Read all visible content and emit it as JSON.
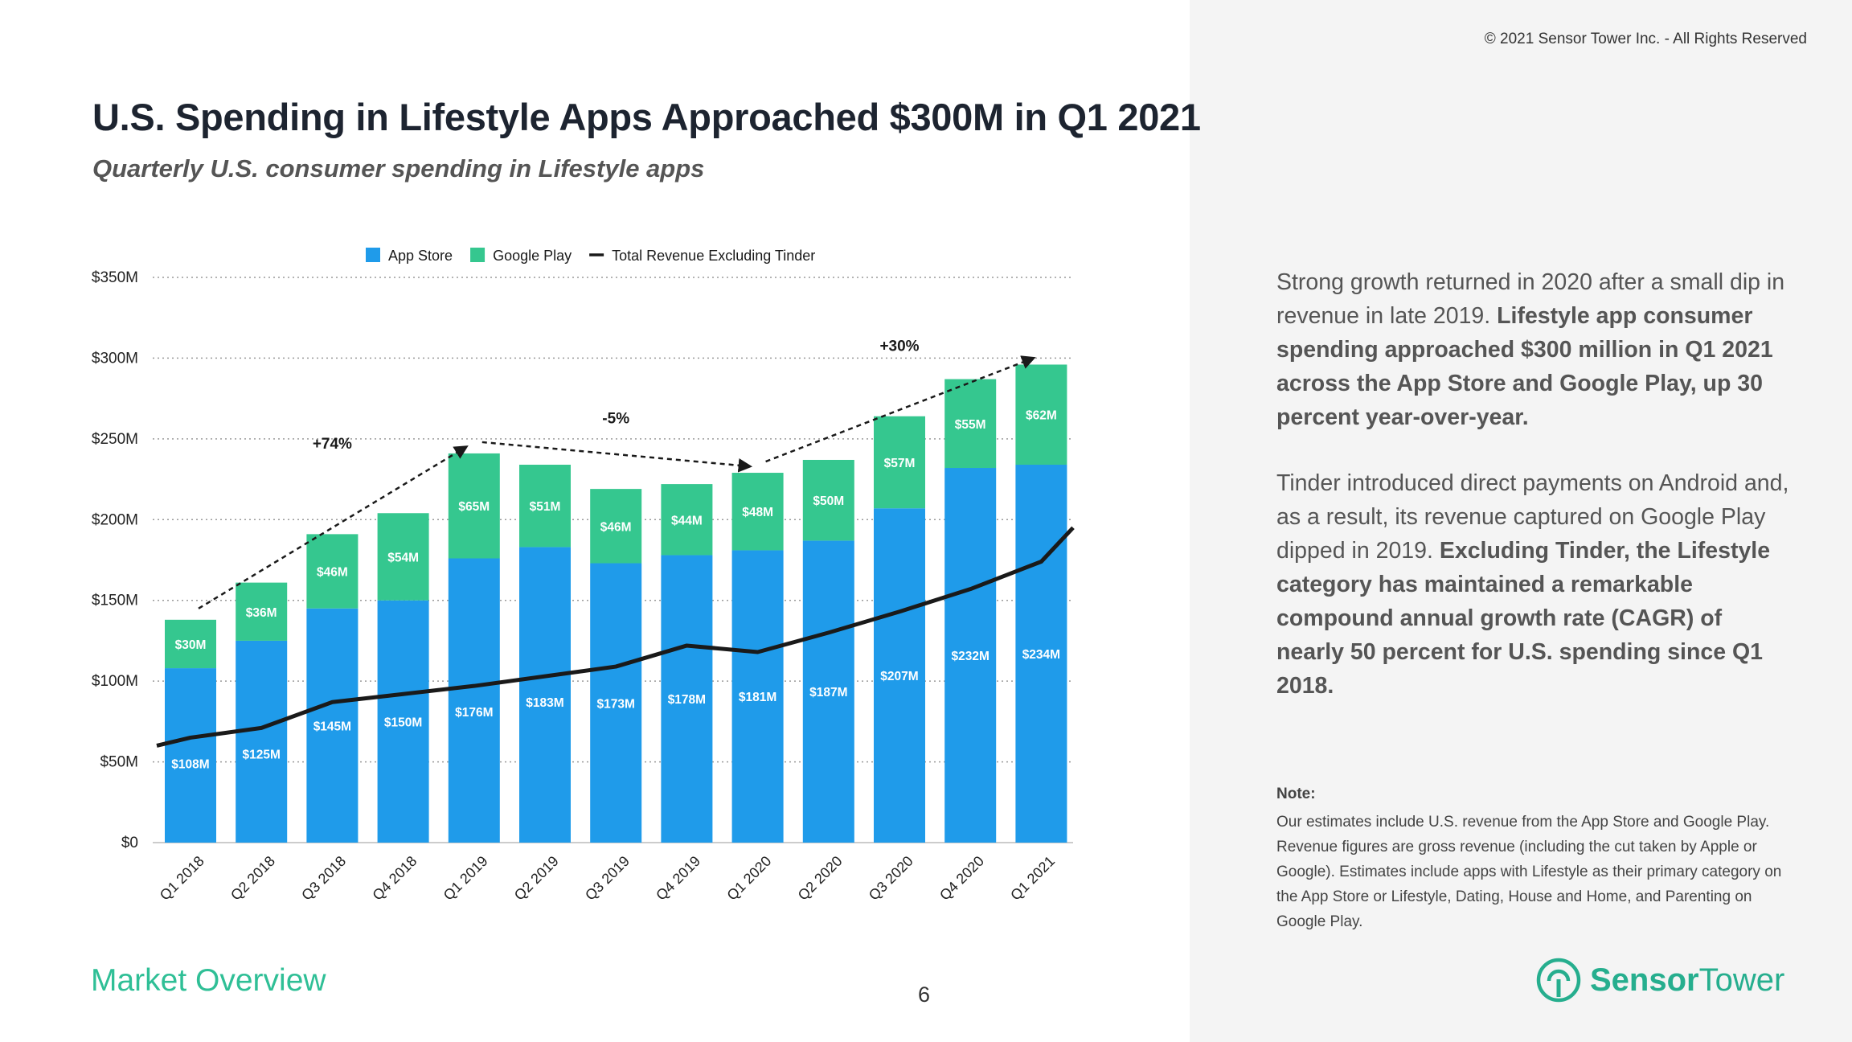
{
  "header": {
    "copyright": "© 2021 Sensor Tower Inc. - All Rights Reserved",
    "title": "U.S. Spending in Lifestyle Apps Approached $300M in Q1 2021",
    "subtitle": "Quarterly U.S. consumer spending in Lifestyle apps"
  },
  "chart_data": {
    "type": "bar",
    "stacked": true,
    "categories": [
      "Q1 2018",
      "Q2 2018",
      "Q3 2018",
      "Q4 2018",
      "Q1 2019",
      "Q2 2019",
      "Q3 2019",
      "Q4 2019",
      "Q1 2020",
      "Q2 2020",
      "Q3 2020",
      "Q4 2020",
      "Q1 2021"
    ],
    "series": [
      {
        "name": "App Store",
        "color": "#1f9bea",
        "values": [
          108,
          125,
          145,
          150,
          176,
          183,
          173,
          178,
          181,
          187,
          207,
          232,
          234
        ],
        "labels": [
          "$108M",
          "$125M",
          "$145M",
          "$150M",
          "$176M",
          "$183M",
          "$173M",
          "$178M",
          "$181M",
          "$187M",
          "$207M",
          "$232M",
          "$234M"
        ]
      },
      {
        "name": "Google Play",
        "color": "#35c78f",
        "values": [
          30,
          36,
          46,
          54,
          65,
          51,
          46,
          44,
          48,
          50,
          57,
          55,
          62
        ],
        "labels": [
          "$30M",
          "$36M",
          "$46M",
          "$54M",
          "$65M",
          "$51M",
          "$46M",
          "$44M",
          "$48M",
          "$50M",
          "$57M",
          "$55M",
          "$62M"
        ]
      }
    ],
    "line_series": {
      "name": "Total Revenue Excluding Tinder",
      "color": "#1a1a1a",
      "start_value": 60,
      "values": [
        65,
        71,
        87,
        92,
        97,
        103,
        109,
        122,
        118,
        130,
        143,
        157,
        174
      ],
      "end_value": 195
    },
    "y_ticks": [
      {
        "value": 0,
        "label": "$0"
      },
      {
        "value": 50,
        "label": "$50M"
      },
      {
        "value": 100,
        "label": "$100M"
      },
      {
        "value": 150,
        "label": "$150M"
      },
      {
        "value": 200,
        "label": "$200M"
      },
      {
        "value": 250,
        "label": "$250M"
      },
      {
        "value": 300,
        "label": "$300M"
      },
      {
        "value": 350,
        "label": "$350M"
      }
    ],
    "ylim": [
      0,
      350
    ],
    "grid": "dotted horizontal",
    "legend_position": "top",
    "annotations": [
      {
        "label": "+74%",
        "from_index": 0,
        "to_index": 4
      },
      {
        "label": "-5%",
        "from_index": 4,
        "to_index": 8
      },
      {
        "label": "+30%",
        "from_index": 8,
        "to_index": 12
      }
    ]
  },
  "description": {
    "p1_normal": "Strong growth returned in 2020 after a small dip in revenue in late 2019. ",
    "p1_bold": "Lifestyle app consumer spending approached $300 million in Q1 2021 across the App Store and Google Play, up 30 percent year-over-year.",
    "p2_normal": "Tinder introduced direct payments on Android and, as a result, its revenue captured on Google Play dipped in 2019. ",
    "p2_bold": "Excluding Tinder, the Lifestyle category has maintained a remarkable compound annual growth rate (CAGR) of nearly 50 percent for U.S. spending since Q1 2018."
  },
  "note": {
    "label": "Note:",
    "text": "Our estimates include U.S. revenue from the App Store and Google Play. Revenue figures are gross revenue (including the cut taken by Apple or Google). Estimates include apps with Lifestyle as their primary category on the App Store or Lifestyle, Dating, House and Home, and Parenting on Google Play."
  },
  "footer": {
    "section": "Market Overview",
    "page_number": "6",
    "logo_bold": "Sensor",
    "logo_light": "Tower",
    "logo_icon": "sensor-tower-logo-icon"
  }
}
